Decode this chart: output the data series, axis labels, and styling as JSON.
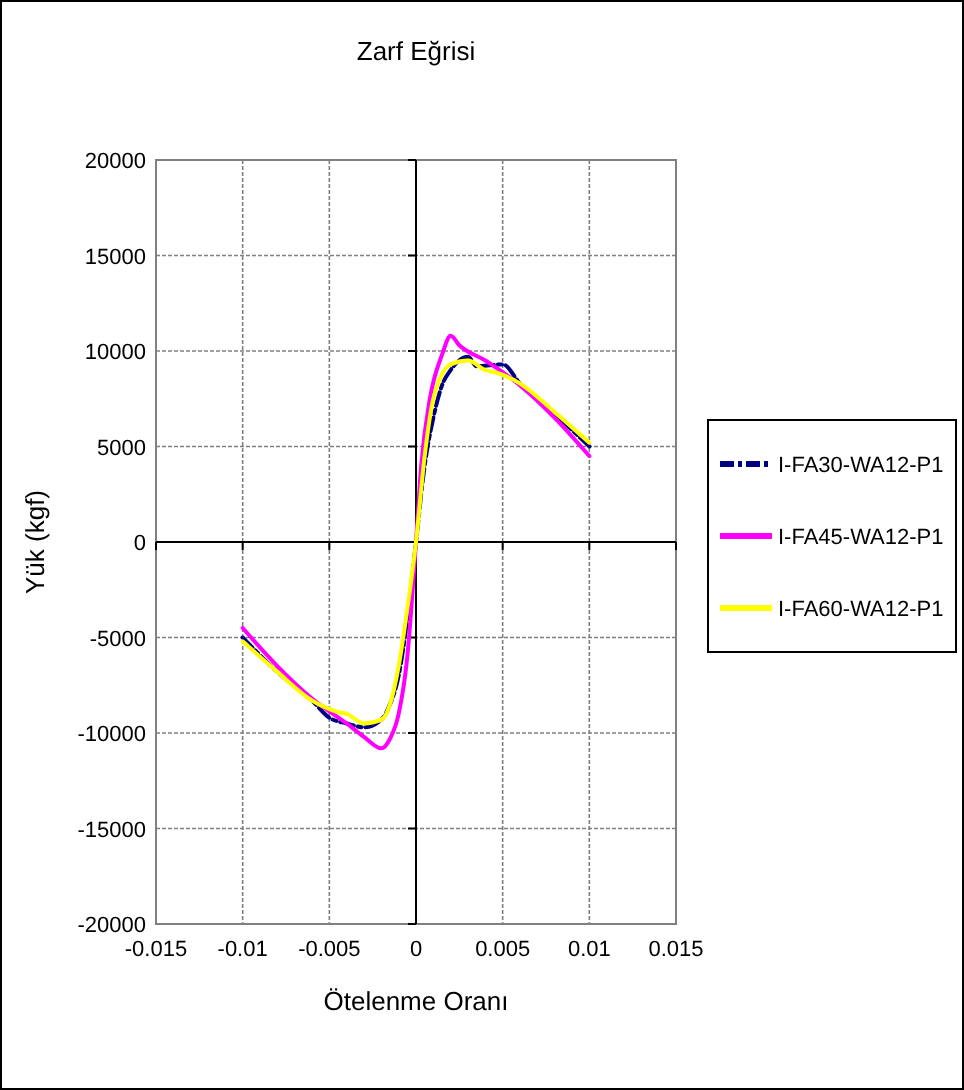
{
  "chart_data": {
    "type": "line",
    "title": "Zarf Eğrisi",
    "xlabel": "Ötelenme Oranı",
    "ylabel": "Yük (kgf)",
    "xlim": [
      -0.015,
      0.015
    ],
    "xticks": [
      -0.015,
      -0.01,
      -0.005,
      0,
      0.005,
      0.01,
      0.015
    ],
    "ylim": [
      -20000,
      20000
    ],
    "yticks": [
      -20000,
      -15000,
      -10000,
      -5000,
      0,
      5000,
      10000,
      15000,
      20000
    ],
    "grid": true,
    "legend": "right",
    "marker": "none",
    "series": [
      {
        "name": "I-FA30-WA12-P1",
        "color": "#000080",
        "line_style": "dashdot",
        "x": [
          -0.01,
          -0.008,
          -0.006,
          -0.005,
          -0.004,
          -0.003,
          -0.002,
          -0.0015,
          -0.001,
          -0.0005,
          0,
          0.0005,
          0.001,
          0.0015,
          0.002,
          0.003,
          0.0035,
          0.005,
          0.006,
          0.008,
          0.01
        ],
        "values": [
          -5000,
          -6800,
          -8300,
          -9200,
          -9500,
          -9700,
          -9300,
          -8500,
          -7000,
          -4000,
          0,
          4000,
          6500,
          8200,
          9000,
          9700,
          9200,
          9300,
          8300,
          6700,
          5000
        ]
      },
      {
        "name": "I-FA45-WA12-P1",
        "color": "#ff00ff",
        "line_style": "solid",
        "x": [
          -0.01,
          -0.008,
          -0.006,
          -0.004,
          -0.003,
          -0.002,
          -0.0015,
          -0.001,
          -0.0005,
          0,
          0.0003,
          0.0008,
          0.0015,
          0.002,
          0.0025,
          0.004,
          0.006,
          0.008,
          0.01
        ],
        "values": [
          -4500,
          -6500,
          -8200,
          -9500,
          -10200,
          -10800,
          -10300,
          -9000,
          -6000,
          0,
          4000,
          7500,
          9800,
          10800,
          10300,
          9500,
          8200,
          6500,
          4500
        ]
      },
      {
        "name": "I-FA60-WA12-P1",
        "color": "#ffff00",
        "line_style": "solid",
        "x": [
          -0.01,
          -0.008,
          -0.006,
          -0.0045,
          -0.004,
          -0.003,
          -0.002,
          -0.0015,
          -0.001,
          -0.0005,
          0,
          0.0005,
          0.001,
          0.002,
          0.003,
          0.004,
          0.0045,
          0.006,
          0.008,
          0.01
        ],
        "values": [
          -5200,
          -6800,
          -8300,
          -8900,
          -9000,
          -9500,
          -9300,
          -8500,
          -6500,
          -3500,
          0,
          4500,
          7500,
          9300,
          9500,
          9000,
          8900,
          8300,
          6800,
          5200
        ]
      }
    ]
  }
}
